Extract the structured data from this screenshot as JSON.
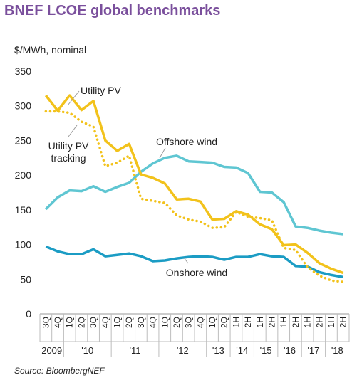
{
  "title": "BNEF LCOE global benchmarks",
  "unit_label": "$/MWh, nominal",
  "source": "Source: BloombergNEF",
  "chart_data": {
    "type": "line",
    "title": "BNEF LCOE global benchmarks",
    "ylabel": "$/MWh, nominal",
    "ylim": [
      0,
      350
    ],
    "yticks": [
      "0",
      "50",
      "100",
      "150",
      "200",
      "250",
      "300",
      "350"
    ],
    "grid": false,
    "x": [
      "3Q",
      "4Q",
      "1Q",
      "2Q",
      "3Q",
      "4Q",
      "1Q",
      "2Q",
      "3Q",
      "4Q",
      "1Q",
      "2Q",
      "3Q",
      "4Q",
      "1Q",
      "2Q",
      "1H",
      "2H",
      "1H",
      "2H",
      "1H",
      "2H",
      "1H",
      "2H",
      "1H",
      "2H"
    ],
    "years": [
      {
        "label": "2009",
        "start": 0,
        "end": 1
      },
      {
        "label": "'10",
        "start": 2,
        "end": 5
      },
      {
        "label": "'11",
        "start": 6,
        "end": 9
      },
      {
        "label": "'12",
        "start": 10,
        "end": 13
      },
      {
        "label": "'13",
        "start": 14,
        "end": 15
      },
      {
        "label": "'14",
        "start": 16,
        "end": 17
      },
      {
        "label": "'15",
        "start": 18,
        "end": 19
      },
      {
        "label": "'16",
        "start": 20,
        "end": 21
      },
      {
        "label": "'17",
        "start": 22,
        "end": 23
      },
      {
        "label": "'18",
        "start": 24,
        "end": 25
      }
    ],
    "series": [
      {
        "name": "Utility PV",
        "color": "#f2c21b",
        "style": "solid",
        "values": [
          315,
          293,
          315,
          294,
          307,
          250,
          235,
          245,
          201,
          196,
          188,
          165,
          166,
          162,
          136,
          137,
          148,
          143,
          129,
          122,
          99,
          100,
          88,
          73,
          65,
          59
        ]
      },
      {
        "name": "Utility PV tracking",
        "color": "#f2c21b",
        "style": "dotted",
        "values": [
          292,
          292,
          290,
          277,
          270,
          213,
          218,
          228,
          166,
          163,
          160,
          142,
          136,
          133,
          124,
          125,
          147,
          140,
          138,
          135,
          95,
          92,
          67,
          55,
          48,
          46
        ]
      },
      {
        "name": "Offshore wind",
        "color": "#5fc6d2",
        "style": "solid",
        "values": [
          151,
          168,
          178,
          177,
          184,
          176,
          183,
          189,
          205,
          217,
          225,
          228,
          220,
          219,
          218,
          212,
          211,
          203,
          176,
          175,
          161,
          126,
          124,
          120,
          117,
          115
        ]
      },
      {
        "name": "Onshore wind",
        "color": "#1b9cc4",
        "style": "solid",
        "values": [
          97,
          90,
          86,
          86,
          93,
          83,
          85,
          87,
          83,
          76,
          77,
          80,
          82,
          83,
          82,
          78,
          82,
          82,
          86,
          83,
          82,
          69,
          68,
          60,
          56,
          53
        ]
      }
    ]
  }
}
